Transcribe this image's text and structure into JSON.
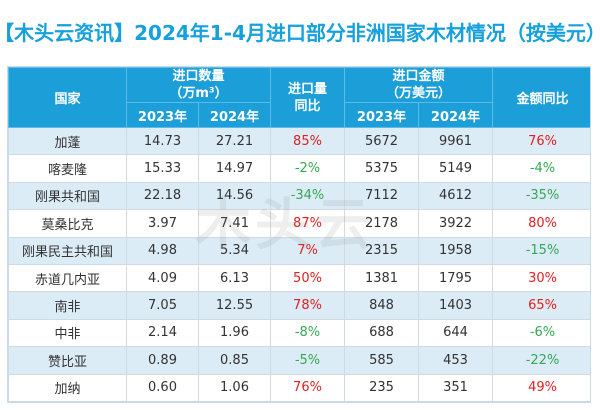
{
  "title": "【木头云资讯】2024年1-4月进口部分非洲国家木材情况（按美元）",
  "watermark": "木头云",
  "colors": {
    "header_bg": "#1c9fd8",
    "title": "#16a0dc",
    "row_alt": "#dcecf6",
    "increase": "#e02020",
    "decrease": "#34a853"
  },
  "header": {
    "country": "国家",
    "import_volume": "进口数量\n（万m³）",
    "volume_change": "进口量\n同比",
    "import_value": "进口金额\n（万美元）",
    "value_change": "金额同比",
    "year_2023": "2023年",
    "year_2024": "2024年"
  },
  "rows": [
    {
      "country": "加蓬",
      "vol_2023": "14.73",
      "vol_2024": "27.21",
      "vol_change": "85%",
      "val_2023": "5672",
      "val_2024": "9961",
      "val_change": "76%"
    },
    {
      "country": "喀麦隆",
      "vol_2023": "15.33",
      "vol_2024": "14.97",
      "vol_change": "-2%",
      "val_2023": "5375",
      "val_2024": "5149",
      "val_change": "-4%"
    },
    {
      "country": "刚果共和国",
      "vol_2023": "22.18",
      "vol_2024": "14.56",
      "vol_change": "-34%",
      "val_2023": "7112",
      "val_2024": "4612",
      "val_change": "-35%"
    },
    {
      "country": "莫桑比克",
      "vol_2023": "3.97",
      "vol_2024": "7.41",
      "vol_change": "87%",
      "val_2023": "2178",
      "val_2024": "3922",
      "val_change": "80%"
    },
    {
      "country": "刚果民主共和国",
      "vol_2023": "4.98",
      "vol_2024": "5.34",
      "vol_change": "7%",
      "val_2023": "2315",
      "val_2024": "1958",
      "val_change": "-15%"
    },
    {
      "country": "赤道几内亚",
      "vol_2023": "4.09",
      "vol_2024": "6.13",
      "vol_change": "50%",
      "val_2023": "1381",
      "val_2024": "1795",
      "val_change": "30%"
    },
    {
      "country": "南非",
      "vol_2023": "7.05",
      "vol_2024": "12.55",
      "vol_change": "78%",
      "val_2023": "848",
      "val_2024": "1403",
      "val_change": "65%"
    },
    {
      "country": "中非",
      "vol_2023": "2.14",
      "vol_2024": "1.96",
      "vol_change": "-8%",
      "val_2023": "688",
      "val_2024": "644",
      "val_change": "-6%"
    },
    {
      "country": "赞比亚",
      "vol_2023": "0.89",
      "vol_2024": "0.85",
      "vol_change": "-5%",
      "val_2023": "585",
      "val_2024": "453",
      "val_change": "-22%"
    },
    {
      "country": "加纳",
      "vol_2023": "0.60",
      "vol_2024": "1.06",
      "vol_change": "76%",
      "val_2023": "235",
      "val_2024": "351",
      "val_change": "49%"
    }
  ]
}
